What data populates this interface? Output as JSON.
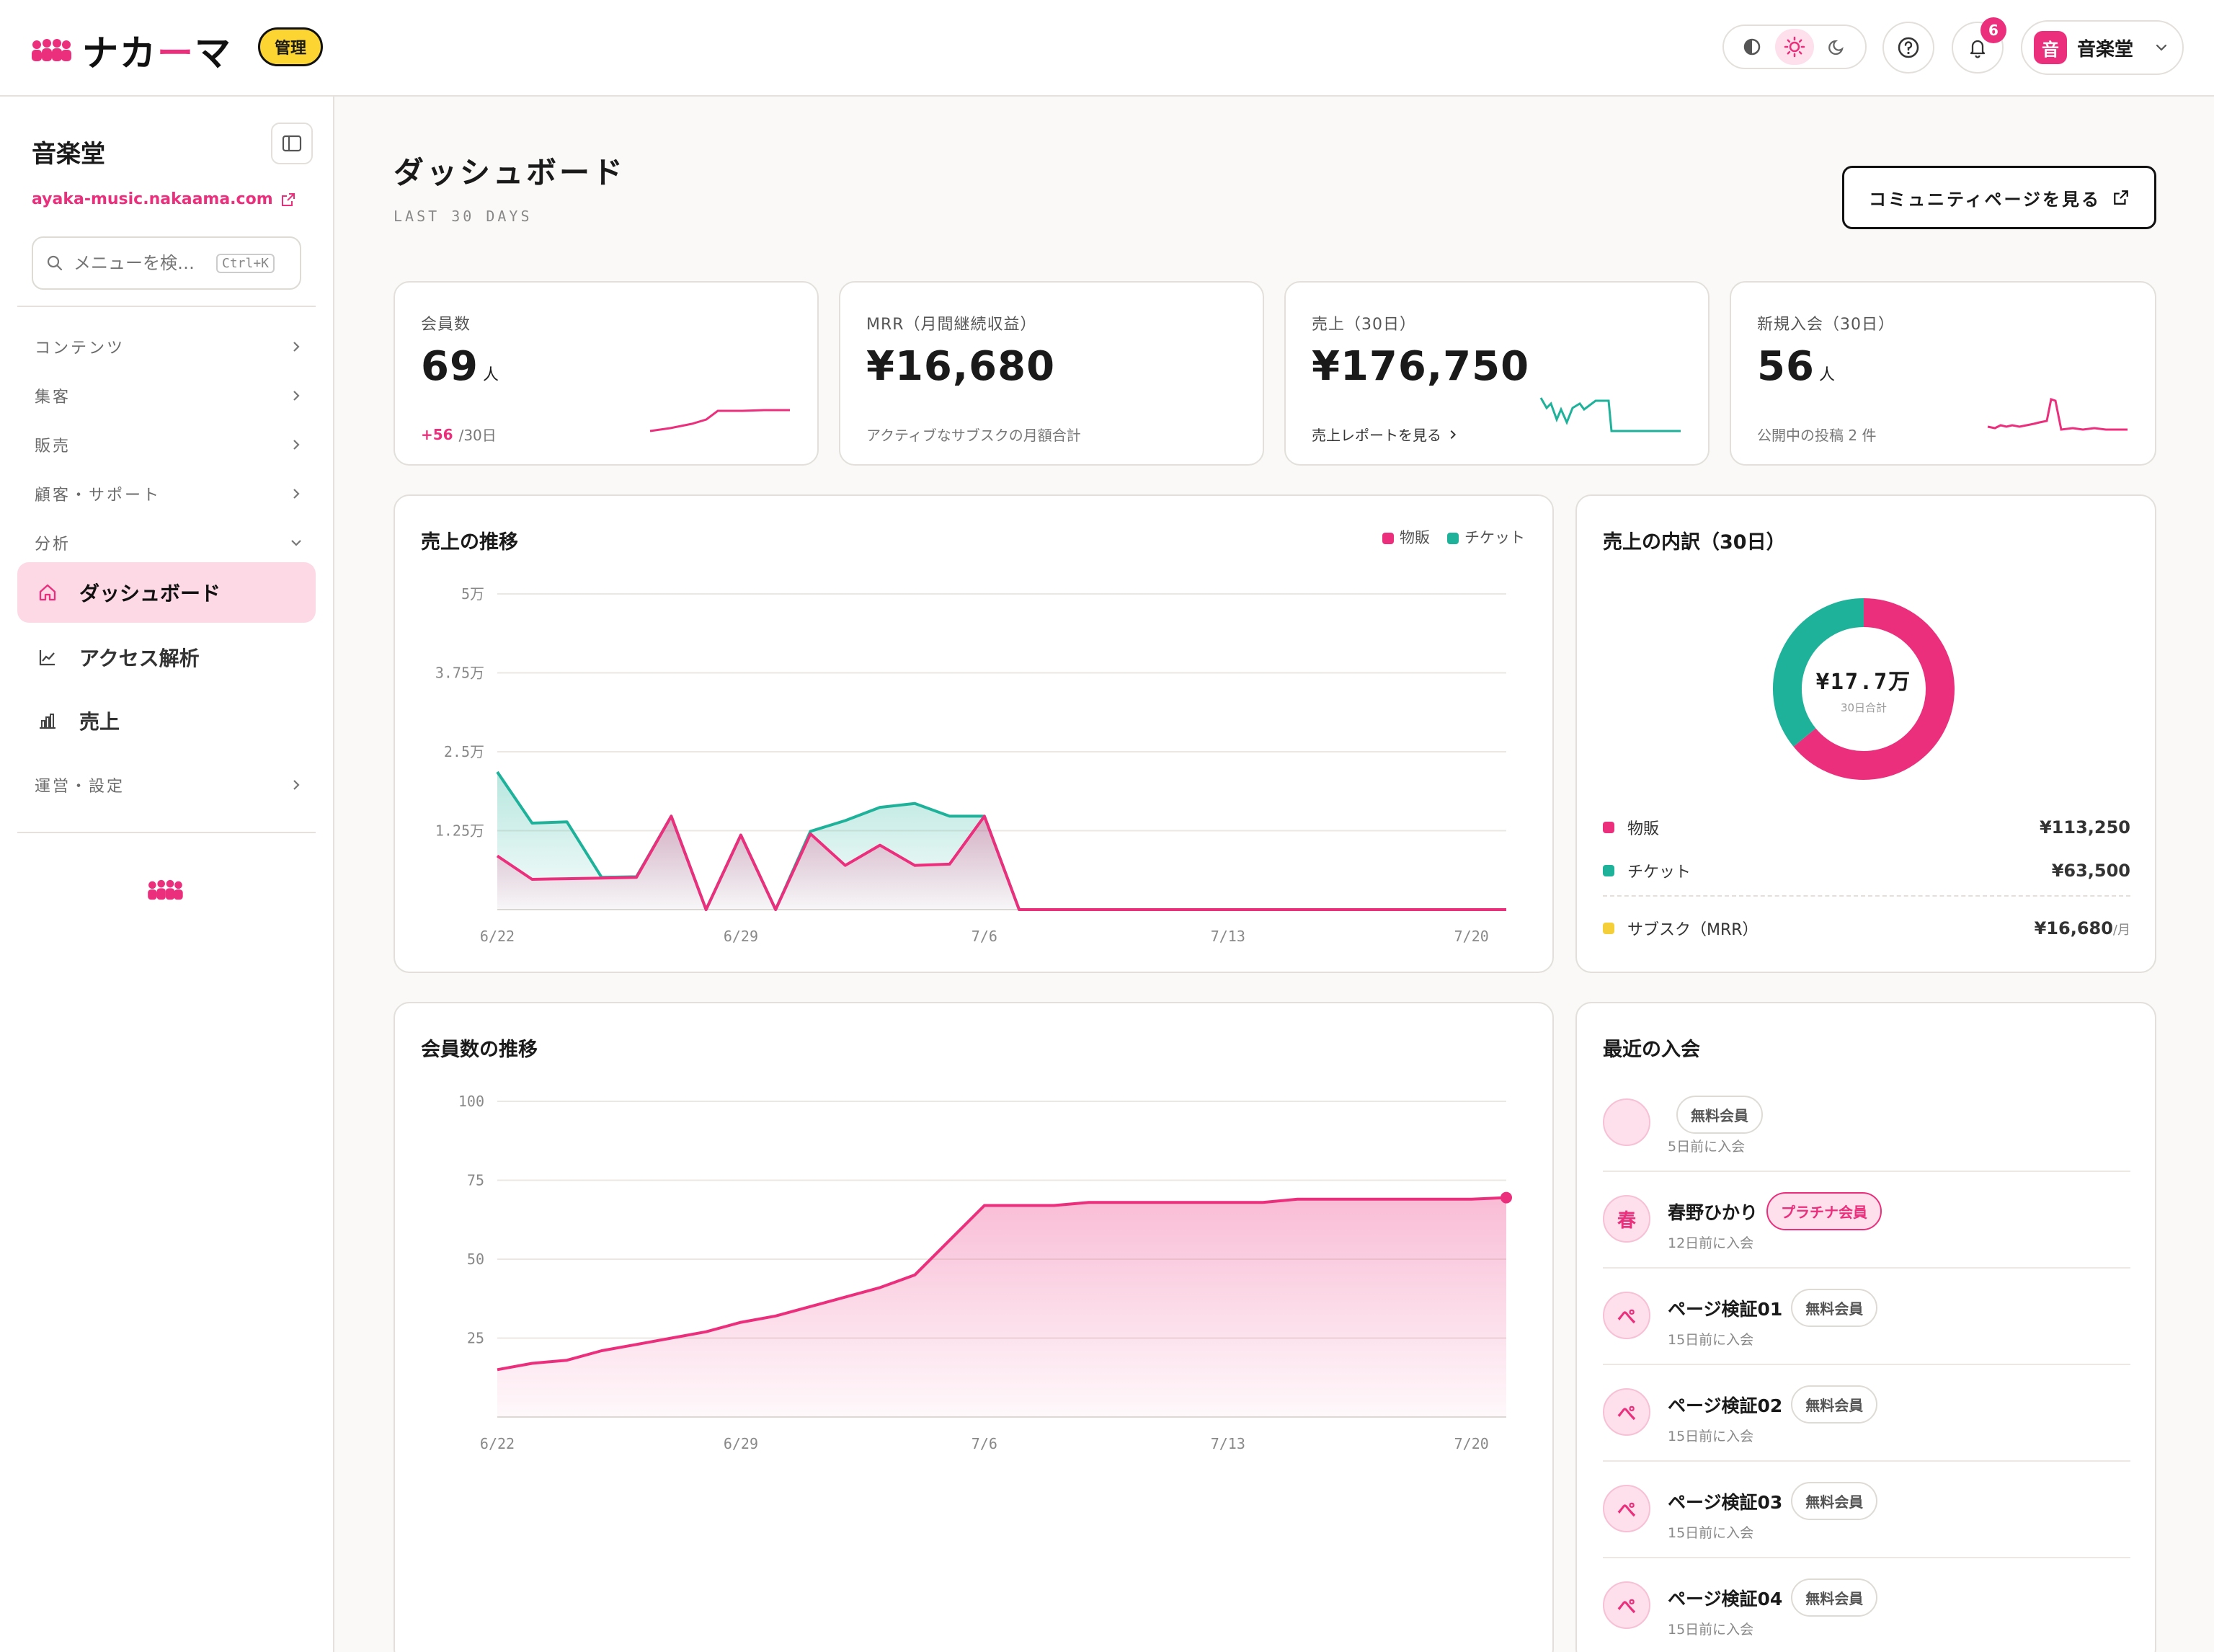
{
  "brand": {
    "name_main": "ナカ",
    "name_accent": "ー",
    "name_tail": "マ",
    "admin_badge": "管理",
    "accent_color": "#ec2f7c"
  },
  "header": {
    "notifications_count": "6",
    "user_initial": "音",
    "user_name": "音楽堂"
  },
  "sidebar": {
    "site_name": "音楽堂",
    "site_url": "ayaka-music.nakaama.com",
    "search_placeholder": "メニューを検…",
    "search_shortcut": "Ctrl+K",
    "groups": [
      "コンテンツ",
      "集客",
      "販売",
      "顧客・サポート",
      "分析"
    ],
    "items": [
      {
        "label": "ダッシュボード",
        "icon": "home-icon",
        "active": true
      },
      {
        "label": "アクセス解析",
        "icon": "line-chart-icon",
        "active": false
      },
      {
        "label": "売上",
        "icon": "bar-chart-icon",
        "active": false
      }
    ],
    "settings_group": "運営・設定"
  },
  "page": {
    "title": "ダッシュボード",
    "subtitle": "LAST 30 DAYS",
    "community_button": "コミュニティページを見る"
  },
  "kpis": [
    {
      "label": "会員数",
      "value": "69",
      "unit": "人",
      "foot_up": "+56",
      "foot_text": "/30日"
    },
    {
      "label": "MRR（月間継続収益）",
      "value": "¥16,680",
      "unit": "",
      "foot_text": "アクティブなサブスクの月額合計"
    },
    {
      "label": "売上（30日）",
      "value": "¥176,750",
      "unit": "",
      "foot_text": "売上レポートを見る"
    },
    {
      "label": "新規入会（30日）",
      "value": "56",
      "unit": "人",
      "foot_text": "公開中の投稿 2 件"
    }
  ],
  "sales_chart": {
    "title": "売上の推移",
    "legend": [
      "物販",
      "チケット"
    ]
  },
  "members_chart": {
    "title": "会員数の推移"
  },
  "breakdown": {
    "title": "売上の内訳（30日）",
    "center_value": "¥17.7万",
    "center_caption": "30日合計",
    "rows": [
      {
        "label": "物販",
        "amount": "¥113,250",
        "color": "#ec2f7c"
      },
      {
        "label": "チケット",
        "amount": "¥63,500",
        "color": "#1fb29b"
      },
      {
        "label": "サブスク（MRR）",
        "amount": "¥16,680",
        "per": "/月",
        "color": "#f5cf3a"
      }
    ]
  },
  "recent": {
    "title": "最近の入会",
    "members": [
      {
        "initial": "",
        "name": "",
        "badge": "無料会員",
        "plat": false,
        "time": "5日前に入会"
      },
      {
        "initial": "春",
        "name": "春野ひかり",
        "badge": "プラチナ会員",
        "plat": true,
        "time": "12日前に入会"
      },
      {
        "initial": "ぺ",
        "name": "ページ検証01",
        "badge": "無料会員",
        "plat": false,
        "time": "15日前に入会"
      },
      {
        "initial": "ぺ",
        "name": "ページ検証02",
        "badge": "無料会員",
        "plat": false,
        "time": "15日前に入会"
      },
      {
        "initial": "ぺ",
        "name": "ページ検証03",
        "badge": "無料会員",
        "plat": false,
        "time": "15日前に入会"
      },
      {
        "initial": "ぺ",
        "name": "ページ検証04",
        "badge": "無料会員",
        "plat": false,
        "time": "15日前に入会"
      }
    ]
  },
  "chart_data": [
    {
      "type": "area",
      "title": "売上の推移",
      "x_ticks": [
        "6/22",
        "6/29",
        "7/6",
        "7/13",
        "7/20"
      ],
      "y_ticks": [
        "5万",
        "3.75万",
        "2.5万",
        "1.25万"
      ],
      "ylim": [
        0,
        50000
      ],
      "series": [
        {
          "name": "物販",
          "color": "#ec2f7c",
          "values": [
            8500,
            4800,
            4900,
            5000,
            5100,
            14800,
            0,
            11800,
            0,
            12000,
            7000,
            10200,
            7000,
            7200,
            14800,
            0,
            0,
            0,
            0,
            0,
            0,
            0,
            0,
            0,
            0,
            0,
            0,
            0,
            0,
            0
          ]
        },
        {
          "name": "チケット",
          "color": "#1fb29b",
          "values": [
            21800,
            13700,
            13900,
            5100,
            5200,
            14800,
            0,
            11800,
            0,
            12400,
            14100,
            16200,
            16800,
            14800,
            14800,
            0,
            0,
            0,
            0,
            0,
            0,
            0,
            0,
            0,
            0,
            0,
            0,
            0,
            0,
            0
          ]
        }
      ]
    },
    {
      "type": "area",
      "title": "会員数の推移",
      "x_ticks": [
        "6/22",
        "6/29",
        "7/6",
        "7/13",
        "7/20"
      ],
      "y_ticks": [
        "100",
        "75",
        "50",
        "25"
      ],
      "ylim": [
        0,
        100
      ],
      "series": [
        {
          "name": "会員数",
          "color": "#ec2f7c",
          "values": [
            15,
            17,
            18,
            21,
            23,
            25,
            27,
            30,
            32,
            35,
            38,
            41,
            45,
            56,
            67,
            67,
            67,
            68,
            68,
            68,
            68,
            68,
            68,
            69,
            69,
            69,
            69,
            69,
            69,
            69.5
          ]
        }
      ]
    },
    {
      "type": "pie",
      "title": "売上の内訳（30日）",
      "categories": [
        "物販",
        "チケット"
      ],
      "values": [
        113250,
        63500
      ]
    }
  ]
}
